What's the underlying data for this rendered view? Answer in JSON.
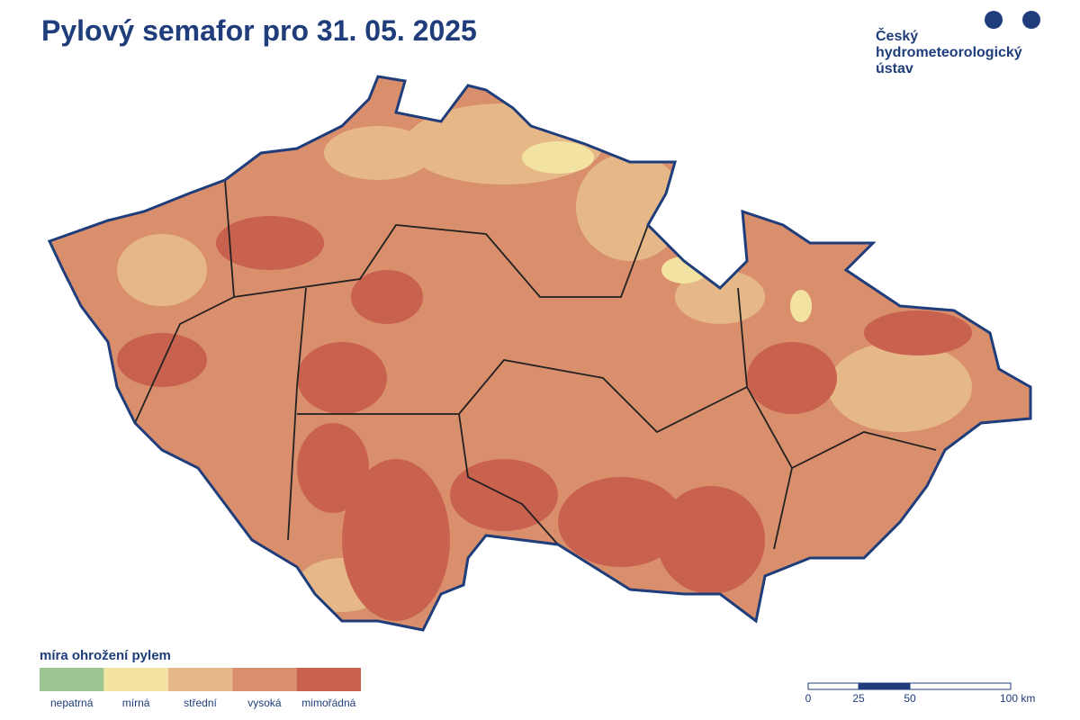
{
  "header": {
    "title": "Pylový semafor pro 31. 05. 2025"
  },
  "logo": {
    "lines": [
      "Český",
      "hydrometeorologický",
      "ústav"
    ]
  },
  "legend": {
    "title": "míra ohrožení pylem",
    "items": [
      {
        "label": "nepatrná",
        "color": "#9dc591"
      },
      {
        "label": "mírná",
        "color": "#f3e3a2"
      },
      {
        "label": "střední",
        "color": "#e7b887"
      },
      {
        "label": "vysoká",
        "color": "#d98f6c"
      },
      {
        "label": "mimořádná",
        "color": "#c9614f"
      }
    ]
  },
  "scale_bar": {
    "labels": [
      "0",
      "25",
      "50",
      "100 km"
    ]
  }
}
